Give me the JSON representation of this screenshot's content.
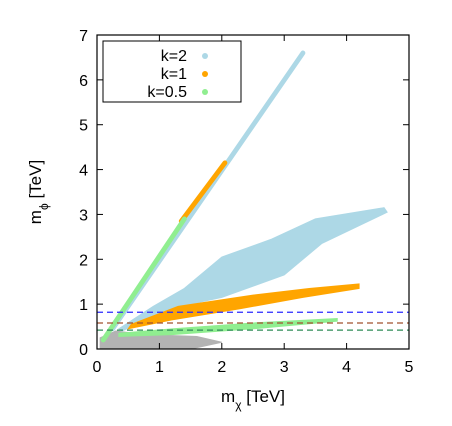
{
  "chart_data": {
    "type": "scatter",
    "xlabel": {
      "main": "m",
      "sub": "χ",
      "unit": " [TeV]"
    },
    "ylabel": {
      "main": "m",
      "sub": "ϕ",
      "unit": " [TeV]"
    },
    "xlim": [
      0,
      5
    ],
    "ylim": [
      0,
      7
    ],
    "xticks": [
      "0",
      "1",
      "2",
      "3",
      "4",
      "5"
    ],
    "yticks": [
      "0",
      "1",
      "2",
      "3",
      "4",
      "5",
      "6",
      "7"
    ],
    "legend_position": "top-left",
    "grid": false,
    "series": [
      {
        "name": "k=2",
        "color": "#add8e6",
        "regions": [
          {
            "kind": "line_band",
            "points": [
              [
                0.25,
                0.45
              ],
              [
                3.3,
                6.6
              ]
            ],
            "width": 0.12
          },
          {
            "kind": "polygon",
            "points": [
              [
                0.35,
                0.45
              ],
              [
                0.9,
                0.95
              ],
              [
                1.4,
                1.35
              ],
              [
                2.0,
                2.05
              ],
              [
                2.8,
                2.45
              ],
              [
                3.5,
                2.9
              ],
              [
                4.6,
                3.15
              ],
              [
                4.65,
                3.05
              ],
              [
                3.6,
                2.35
              ],
              [
                3.0,
                1.65
              ],
              [
                2.0,
                1.15
              ],
              [
                1.5,
                1.0
              ],
              [
                0.7,
                0.6
              ],
              [
                0.4,
                0.4
              ]
            ]
          }
        ]
      },
      {
        "name": "k=1",
        "color": "#ffa500",
        "regions": [
          {
            "kind": "line_band",
            "points": [
              [
                1.35,
                2.85
              ],
              [
                2.05,
                4.15
              ]
            ],
            "width": 0.12
          },
          {
            "kind": "polygon",
            "points": [
              [
                0.55,
                0.55
              ],
              [
                1.3,
                0.95
              ],
              [
                2.5,
                1.2
              ],
              [
                3.4,
                1.35
              ],
              [
                4.2,
                1.45
              ],
              [
                4.2,
                1.35
              ],
              [
                3.3,
                1.15
              ],
              [
                2.3,
                0.9
              ],
              [
                1.2,
                0.65
              ],
              [
                0.5,
                0.45
              ]
            ]
          }
        ]
      },
      {
        "name": "k=0.5",
        "color": "#90ee90",
        "regions": [
          {
            "kind": "line_band",
            "points": [
              [
                0.1,
                0.2
              ],
              [
                1.4,
                2.9
              ]
            ],
            "width": 0.12
          },
          {
            "kind": "polygon",
            "points": [
              [
                0.35,
                0.35
              ],
              [
                1.2,
                0.45
              ],
              [
                2.5,
                0.58
              ],
              [
                3.85,
                0.68
              ],
              [
                3.85,
                0.62
              ],
              [
                2.5,
                0.45
              ],
              [
                1.2,
                0.32
              ],
              [
                0.35,
                0.28
              ]
            ]
          }
        ]
      },
      {
        "color": "#b3b3b3",
        "regions": [
          {
            "kind": "polygon",
            "points": [
              [
                0.05,
                0.0
              ],
              [
                0.05,
                0.25
              ],
              [
                0.3,
                0.4
              ],
              [
                0.8,
                0.32
              ],
              [
                1.6,
                0.28
              ],
              [
                2.0,
                0.15
              ],
              [
                1.5,
                0.0
              ]
            ]
          }
        ]
      }
    ],
    "reference_lines": [
      {
        "y": 0.82,
        "color": "#2a2aff",
        "dash": "6,4"
      },
      {
        "y": 0.58,
        "color": "#a0522d",
        "dash": "6,4"
      },
      {
        "y": 0.42,
        "color": "#2e8b57",
        "dash": "6,4"
      }
    ]
  }
}
